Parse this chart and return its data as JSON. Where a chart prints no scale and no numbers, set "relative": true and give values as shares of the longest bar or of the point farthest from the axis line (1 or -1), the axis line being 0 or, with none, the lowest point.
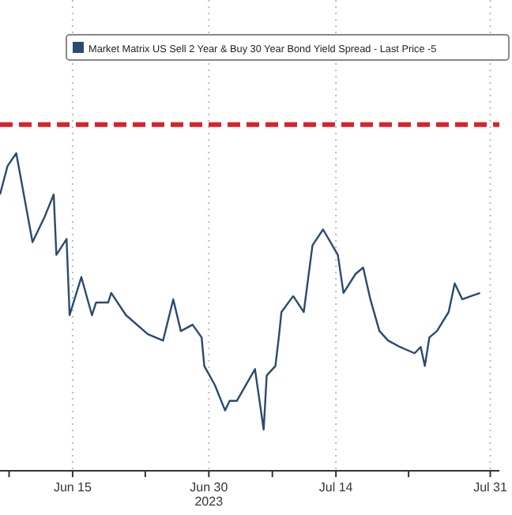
{
  "chart_data": {
    "type": "line",
    "relative": true,
    "xlabel": "2023",
    "legend": "top",
    "grid": "x",
    "line_style": "solid",
    "marker": "none",
    "x": [
      "2023-06-07T00:00",
      "2023-06-07T20:00",
      "2023-06-08T19:00",
      "2023-06-10T14:00",
      "2023-06-11T22:00",
      "2023-06-12T22:00",
      "2023-06-13T05:00",
      "2023-06-14T08:00",
      "2023-06-14T16:00",
      "2023-06-15T23:00",
      "2023-06-17T03:00",
      "2023-06-17T14:00",
      "2023-06-18T22:00",
      "2023-06-19T06:00",
      "2023-06-20T21:00",
      "2023-06-23T07:00",
      "2023-06-24T23:00",
      "2023-06-26T02:00",
      "2023-06-26T22:00",
      "2023-06-28T05:00",
      "2023-06-29T05:00",
      "2023-06-29T12:00",
      "2023-06-30T16:00",
      "2023-07-01T19:00",
      "2023-07-02T07:00",
      "2023-07-03T02:00",
      "2023-07-04T02:00",
      "2023-07-05T02:00",
      "2023-07-06T01:00",
      "2023-07-06T09:00",
      "2023-07-07T08:00",
      "2023-07-07T17:00",
      "2023-07-08T00:00",
      "2023-07-09T07:00",
      "2023-07-10T11:00",
      "2023-07-11T10:00",
      "2023-07-12T14:00",
      "2023-07-14T05:00",
      "2023-07-14T20:00",
      "2023-07-16T04:00",
      "2023-07-17T00:00",
      "2023-07-17T19:00",
      "2023-07-18T19:00",
      "2023-07-19T18:00",
      "2023-07-21T01:00",
      "2023-07-22T16:00",
      "2023-07-23T08:00",
      "2023-07-23T19:00",
      "2023-07-24T07:00",
      "2023-07-25T03:00",
      "2023-07-26T10:00",
      "2023-07-27T02:00",
      "2023-07-27T22:00",
      "2023-07-28T21:00",
      "2023-07-29T21:00"
    ],
    "xlim": [
      "2023-06-07",
      "2023-08-01"
    ],
    "xticks": [
      {
        "value": "2023-06-08",
        "label": null
      },
      {
        "value": "2023-06-15",
        "label": "Jun 15"
      },
      {
        "value": "2023-06-23",
        "label": null
      },
      {
        "value": "2023-06-30",
        "label": "Jun 30"
      },
      {
        "value": "2023-07-07",
        "label": null
      },
      {
        "value": "2023-07-14",
        "label": "Jul 14"
      },
      {
        "value": "2023-07-22",
        "label": null
      },
      {
        "value": "2023-07-31",
        "label": "Jul 31"
      }
    ],
    "series": [
      {
        "name": "Market Matrix US Sell 2 Year & Buy 30 Year Bond Yield Spread - Last Price -5",
        "color": "#2b4a6f",
        "values": [
          0.87,
          0.96,
          1.0,
          0.72,
          0.8,
          0.87,
          0.68,
          0.73,
          0.49,
          0.61,
          0.49,
          0.53,
          0.53,
          0.56,
          0.49,
          0.43,
          0.41,
          0.54,
          0.44,
          0.46,
          0.42,
          0.33,
          0.27,
          0.19,
          0.22,
          0.22,
          0.27,
          0.32,
          0.13,
          0.3,
          0.33,
          0.42,
          0.5,
          0.55,
          0.5,
          0.71,
          0.76,
          0.68,
          0.56,
          0.62,
          0.64,
          0.54,
          0.44,
          0.41,
          0.39,
          0.37,
          0.39,
          0.33,
          0.42,
          0.44,
          0.5,
          0.59,
          0.54,
          0.55,
          0.56
        ]
      }
    ],
    "ref_lines": [
      {
        "axis": "y",
        "value": 1.09,
        "color": "#d9232b",
        "line_style": "dashed"
      }
    ]
  }
}
